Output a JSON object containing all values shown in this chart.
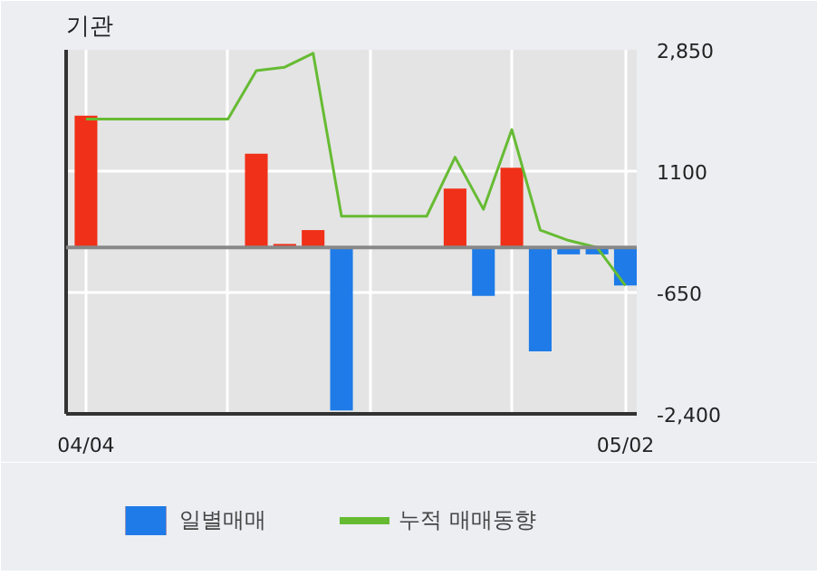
{
  "chart_data": {
    "type": "bar",
    "title": "기관",
    "categories": [
      "04/04",
      null,
      null,
      null,
      null,
      null,
      null,
      null,
      null,
      null,
      null,
      null,
      null,
      null,
      null,
      null,
      null,
      null,
      null,
      "05/02"
    ],
    "series": [
      {
        "name": "일별매매",
        "values": [
          1900,
          null,
          null,
          null,
          null,
          null,
          1350,
          50,
          250,
          -2350,
          null,
          null,
          null,
          850,
          -700,
          1150,
          -1500,
          -100,
          -100,
          -550
        ],
        "colors": [
          "#f03018",
          null,
          null,
          null,
          null,
          null,
          "#f03018",
          "#f03018",
          "#f03018",
          "#1e7be8",
          null,
          null,
          null,
          "#f03018",
          "#1e7be8",
          "#f03018",
          "#1e7be8",
          "#1e7be8",
          "#1e7be8",
          "#1e7be8"
        ]
      },
      {
        "name": "누적 매매동향",
        "type": "line",
        "color": "#66bb33",
        "values": [
          1850,
          1850,
          1850,
          1850,
          1850,
          1850,
          2550,
          2600,
          2800,
          450,
          450,
          450,
          450,
          1300,
          550,
          1700,
          250,
          100,
          0,
          -550
        ]
      }
    ],
    "ylim": [
      -2400,
      2850
    ],
    "yticks": [
      {
        "value": 2850,
        "label": "2,850"
      },
      1100,
      -650,
      {
        "value": -2400,
        "label": "-2,400"
      }
    ],
    "ref_lines": [
      {
        "axis": "y",
        "value": 0,
        "color": "#888888"
      }
    ],
    "grid": true,
    "legend": "bottom"
  }
}
